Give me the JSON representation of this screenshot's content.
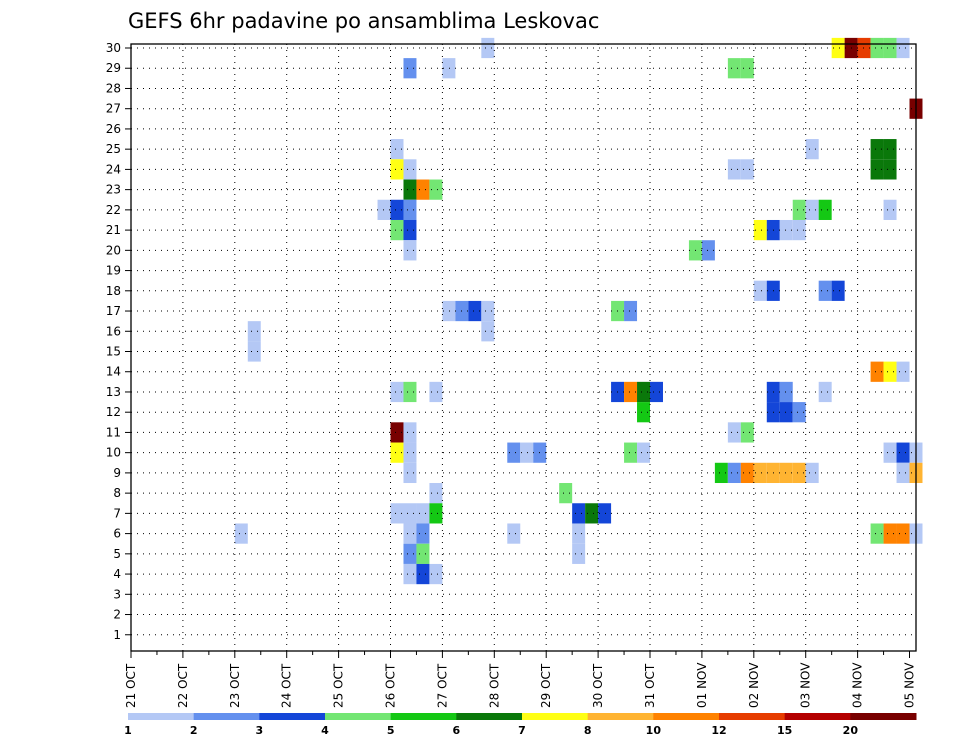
{
  "chart_data": {
    "type": "heatmap",
    "title": "GEFS 6hr padavine po ansamblima Leskovac",
    "ylabel": "",
    "xlabel": "",
    "y_members": [
      1,
      2,
      3,
      4,
      5,
      6,
      7,
      8,
      9,
      10,
      11,
      12,
      13,
      14,
      15,
      16,
      17,
      18,
      19,
      20,
      21,
      22,
      23,
      24,
      25,
      26,
      27,
      28,
      29,
      30
    ],
    "ylim": [
      0,
      30
    ],
    "x_date_labels": [
      "21 OCT",
      "22 OCT",
      "23 OCT",
      "24 OCT",
      "25 OCT",
      "26 OCT",
      "27 OCT",
      "28 OCT",
      "29 OCT",
      "30 OCT",
      "31 OCT",
      "01 NOV",
      "02 NOV",
      "03 NOV",
      "04 NOV",
      "05 NOV"
    ],
    "x_unit": "6-hour steps from 21 OCT 00Z",
    "xlim": [
      0,
      60.5
    ],
    "grid": true,
    "color_scale": {
      "labels": [
        "1",
        "2",
        "3",
        "4",
        "5",
        "6",
        "7",
        "8",
        "10",
        "12",
        "15",
        "20"
      ],
      "colors": [
        "#b4c8f5",
        "#6490ee",
        "#1446d8",
        "#73e673",
        "#14c814",
        "#0a780a",
        "#ffff14",
        "#ffb432",
        "#ff8200",
        "#e63c00",
        "#b40000",
        "#780000"
      ]
    },
    "cells": [
      {
        "member": 30,
        "t": 27.5,
        "v": 1
      },
      {
        "member": 30,
        "t": 54.5,
        "v": 7
      },
      {
        "member": 30,
        "t": 55.5,
        "v": 20
      },
      {
        "member": 30,
        "t": 56.5,
        "v": 12
      },
      {
        "member": 30,
        "t": 57.5,
        "v": 4
      },
      {
        "member": 30,
        "t": 58.5,
        "v": 4
      },
      {
        "member": 30,
        "t": 59.5,
        "v": 1
      },
      {
        "member": 29,
        "t": 21.5,
        "v": 2
      },
      {
        "member": 29,
        "t": 24.5,
        "v": 1
      },
      {
        "member": 29,
        "t": 46.5,
        "v": 4
      },
      {
        "member": 29,
        "t": 47.5,
        "v": 4
      },
      {
        "member": 27,
        "t": 60.5,
        "v": 20
      },
      {
        "member": 25,
        "t": 20.5,
        "v": 1
      },
      {
        "member": 25,
        "t": 52.5,
        "v": 1
      },
      {
        "member": 25,
        "t": 57.5,
        "v": 6
      },
      {
        "member": 25,
        "t": 58.5,
        "v": 6
      },
      {
        "member": 24,
        "t": 20.5,
        "v": 7
      },
      {
        "member": 24,
        "t": 21.5,
        "v": 1
      },
      {
        "member": 24,
        "t": 46.5,
        "v": 1
      },
      {
        "member": 24,
        "t": 47.5,
        "v": 1
      },
      {
        "member": 24,
        "t": 57.5,
        "v": 6
      },
      {
        "member": 24,
        "t": 58.5,
        "v": 6
      },
      {
        "member": 23,
        "t": 21.5,
        "v": 6
      },
      {
        "member": 23,
        "t": 22.5,
        "v": 10
      },
      {
        "member": 23,
        "t": 23.5,
        "v": 4
      },
      {
        "member": 22,
        "t": 19.5,
        "v": 1
      },
      {
        "member": 22,
        "t": 20.5,
        "v": 3
      },
      {
        "member": 22,
        "t": 21.5,
        "v": 2
      },
      {
        "member": 22,
        "t": 51.5,
        "v": 4
      },
      {
        "member": 22,
        "t": 52.5,
        "v": 1
      },
      {
        "member": 22,
        "t": 53.5,
        "v": 5
      },
      {
        "member": 22,
        "t": 58.5,
        "v": 1
      },
      {
        "member": 21,
        "t": 20.5,
        "v": 4
      },
      {
        "member": 21,
        "t": 21.5,
        "v": 3
      },
      {
        "member": 21,
        "t": 48.5,
        "v": 7
      },
      {
        "member": 21,
        "t": 49.5,
        "v": 3
      },
      {
        "member": 21,
        "t": 50.5,
        "v": 1
      },
      {
        "member": 21,
        "t": 51.5,
        "v": 1
      },
      {
        "member": 20,
        "t": 21.5,
        "v": 1
      },
      {
        "member": 20,
        "t": 43.5,
        "v": 4
      },
      {
        "member": 20,
        "t": 44.5,
        "v": 2
      },
      {
        "member": 18,
        "t": 48.5,
        "v": 1
      },
      {
        "member": 18,
        "t": 49.5,
        "v": 3
      },
      {
        "member": 18,
        "t": 53.5,
        "v": 2
      },
      {
        "member": 18,
        "t": 54.5,
        "v": 3
      },
      {
        "member": 17,
        "t": 24.5,
        "v": 1
      },
      {
        "member": 17,
        "t": 25.5,
        "v": 2
      },
      {
        "member": 17,
        "t": 26.5,
        "v": 3
      },
      {
        "member": 17,
        "t": 27.5,
        "v": 1
      },
      {
        "member": 17,
        "t": 37.5,
        "v": 4
      },
      {
        "member": 17,
        "t": 38.5,
        "v": 2
      },
      {
        "member": 16,
        "t": 9.5,
        "v": 1
      },
      {
        "member": 16,
        "t": 27.5,
        "v": 1
      },
      {
        "member": 15,
        "t": 9.5,
        "v": 1
      },
      {
        "member": 14,
        "t": 57.5,
        "v": 10
      },
      {
        "member": 14,
        "t": 58.5,
        "v": 7
      },
      {
        "member": 14,
        "t": 59.5,
        "v": 1
      },
      {
        "member": 13,
        "t": 20.5,
        "v": 1
      },
      {
        "member": 13,
        "t": 21.5,
        "v": 4
      },
      {
        "member": 13,
        "t": 23.5,
        "v": 1
      },
      {
        "member": 13,
        "t": 37.5,
        "v": 3
      },
      {
        "member": 13,
        "t": 38.5,
        "v": 10
      },
      {
        "member": 13,
        "t": 39.5,
        "v": 6
      },
      {
        "member": 13,
        "t": 40.5,
        "v": 3
      },
      {
        "member": 13,
        "t": 49.5,
        "v": 3
      },
      {
        "member": 13,
        "t": 50.5,
        "v": 2
      },
      {
        "member": 13,
        "t": 53.5,
        "v": 1
      },
      {
        "member": 12,
        "t": 39.5,
        "v": 5
      },
      {
        "member": 12,
        "t": 49.5,
        "v": 3
      },
      {
        "member": 12,
        "t": 50.5,
        "v": 3
      },
      {
        "member": 12,
        "t": 51.5,
        "v": 2
      },
      {
        "member": 11,
        "t": 20.5,
        "v": 20
      },
      {
        "member": 11,
        "t": 21.5,
        "v": 1
      },
      {
        "member": 11,
        "t": 46.5,
        "v": 1
      },
      {
        "member": 11,
        "t": 47.5,
        "v": 4
      },
      {
        "member": 10,
        "t": 20.5,
        "v": 7
      },
      {
        "member": 10,
        "t": 21.5,
        "v": 1
      },
      {
        "member": 10,
        "t": 29.5,
        "v": 2
      },
      {
        "member": 10,
        "t": 30.5,
        "v": 1
      },
      {
        "member": 10,
        "t": 31.5,
        "v": 2
      },
      {
        "member": 10,
        "t": 38.5,
        "v": 4
      },
      {
        "member": 10,
        "t": 39.5,
        "v": 1
      },
      {
        "member": 10,
        "t": 58.5,
        "v": 1
      },
      {
        "member": 10,
        "t": 59.5,
        "v": 3
      },
      {
        "member": 10,
        "t": 60.5,
        "v": 1
      },
      {
        "member": 9,
        "t": 21.5,
        "v": 1
      },
      {
        "member": 9,
        "t": 45.5,
        "v": 5
      },
      {
        "member": 9,
        "t": 46.5,
        "v": 2
      },
      {
        "member": 9,
        "t": 47.5,
        "v": 10
      },
      {
        "member": 9,
        "t": 48.5,
        "v": 8
      },
      {
        "member": 9,
        "t": 49.5,
        "v": 8
      },
      {
        "member": 9,
        "t": 50.5,
        "v": 8
      },
      {
        "member": 9,
        "t": 51.5,
        "v": 8
      },
      {
        "member": 9,
        "t": 52.5,
        "v": 1
      },
      {
        "member": 9,
        "t": 59.5,
        "v": 1
      },
      {
        "member": 9,
        "t": 60.5,
        "v": 8
      },
      {
        "member": 8,
        "t": 23.5,
        "v": 1
      },
      {
        "member": 8,
        "t": 33.5,
        "v": 4
      },
      {
        "member": 7,
        "t": 20.5,
        "v": 1
      },
      {
        "member": 7,
        "t": 21.5,
        "v": 1
      },
      {
        "member": 7,
        "t": 22.5,
        "v": 1
      },
      {
        "member": 7,
        "t": 23.5,
        "v": 5
      },
      {
        "member": 7,
        "t": 34.5,
        "v": 3
      },
      {
        "member": 7,
        "t": 35.5,
        "v": 6
      },
      {
        "member": 7,
        "t": 36.5,
        "v": 3
      },
      {
        "member": 6,
        "t": 8.5,
        "v": 1
      },
      {
        "member": 6,
        "t": 21.5,
        "v": 1
      },
      {
        "member": 6,
        "t": 22.5,
        "v": 2
      },
      {
        "member": 6,
        "t": 29.5,
        "v": 1
      },
      {
        "member": 6,
        "t": 34.5,
        "v": 1
      },
      {
        "member": 6,
        "t": 57.5,
        "v": 4
      },
      {
        "member": 6,
        "t": 58.5,
        "v": 10
      },
      {
        "member": 6,
        "t": 59.5,
        "v": 10
      },
      {
        "member": 6,
        "t": 60.5,
        "v": 1
      },
      {
        "member": 5,
        "t": 21.5,
        "v": 2
      },
      {
        "member": 5,
        "t": 22.5,
        "v": 4
      },
      {
        "member": 5,
        "t": 34.5,
        "v": 1
      },
      {
        "member": 4,
        "t": 21.5,
        "v": 1
      },
      {
        "member": 4,
        "t": 22.5,
        "v": 3
      },
      {
        "member": 4,
        "t": 23.5,
        "v": 1
      }
    ]
  }
}
